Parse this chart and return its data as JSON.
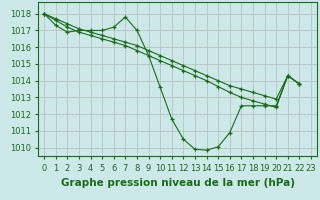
{
  "background_color": "#cce8e8",
  "grid_color": "#b0b0b0",
  "line_color": "#1a6b1a",
  "xlabel": "Graphe pression niveau de la mer (hPa)",
  "xlabel_fontsize": 7.5,
  "tick_fontsize": 6,
  "xlim": [
    -0.5,
    23.5
  ],
  "ylim": [
    1009.5,
    1018.7
  ],
  "yticks": [
    1010,
    1011,
    1012,
    1013,
    1014,
    1015,
    1016,
    1017,
    1018
  ],
  "series": [
    {
      "x": [
        0,
        1,
        2,
        3,
        4,
        5,
        6,
        7,
        8,
        9,
        10,
        11,
        12,
        13,
        14,
        15,
        16,
        17,
        18,
        19,
        20,
        21,
        22
      ],
      "y": [
        1018.0,
        1017.3,
        1016.9,
        1017.0,
        1017.0,
        1017.0,
        1017.2,
        1017.8,
        1017.0,
        1015.5,
        1013.6,
        1011.7,
        1010.5,
        1009.9,
        1009.85,
        1010.05,
        1010.9,
        1012.5,
        1012.5,
        1012.5,
        1012.5,
        1014.3,
        1013.8
      ]
    },
    {
      "x": [
        0,
        1,
        2,
        3,
        4,
        5,
        6,
        7,
        8,
        9,
        10,
        11,
        12,
        13,
        14,
        15,
        16,
        17,
        18,
        19,
        20,
        21,
        22
      ],
      "y": [
        1018.0,
        1017.7,
        1017.4,
        1017.1,
        1016.9,
        1016.7,
        1016.5,
        1016.3,
        1016.1,
        1015.8,
        1015.5,
        1015.2,
        1014.9,
        1014.6,
        1014.3,
        1014.0,
        1013.7,
        1013.5,
        1013.3,
        1013.1,
        1012.9,
        1014.3,
        1013.8
      ]
    },
    {
      "x": [
        0,
        1,
        2,
        3,
        4,
        5,
        6,
        7,
        8,
        9,
        10,
        11,
        12,
        13,
        14,
        15,
        16,
        17,
        18,
        19,
        20,
        21,
        22
      ],
      "y": [
        1018.0,
        1017.6,
        1017.2,
        1016.9,
        1016.7,
        1016.5,
        1016.3,
        1016.1,
        1015.8,
        1015.5,
        1015.2,
        1014.9,
        1014.6,
        1014.3,
        1014.0,
        1013.65,
        1013.3,
        1013.0,
        1012.8,
        1012.6,
        1012.4,
        1014.3,
        1013.8
      ]
    }
  ]
}
